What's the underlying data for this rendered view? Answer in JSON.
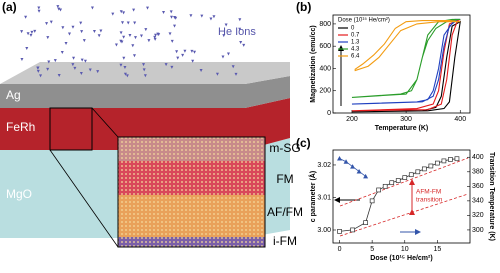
{
  "diagram": {
    "panel_label": "(a)",
    "ion_label": "He Ions",
    "layers": [
      "Ag",
      "FeRh",
      "MgO"
    ],
    "regions": [
      "m-SG",
      "FM",
      "AF/FM",
      "i-FM"
    ]
  },
  "chart_data": [
    {
      "type": "line",
      "label": "(b)",
      "x_label": "Temperature (K)",
      "y_label": "Magnetization (emu/cc)",
      "legend_title": "Dose (10¹⁵ He/cm²)",
      "legend": "upper left",
      "xlim": [
        165,
        418
      ],
      "xticks": [
        200,
        300,
        400
      ],
      "ylim": [
        0,
        880
      ],
      "yticks": [
        0,
        200,
        400,
        600,
        800
      ],
      "series": [
        {
          "name": "0",
          "color": "#000000",
          "x": [
            200,
            340,
            370,
            380,
            390,
            400,
            385,
            375,
            365,
            355,
            330,
            200
          ],
          "values": [
            10,
            20,
            40,
            100,
            500,
            820,
            780,
            500,
            150,
            50,
            20,
            10
          ]
        },
        {
          "name": "0.7",
          "color": "#e41a1c",
          "x": [
            200,
            340,
            365,
            375,
            385,
            395,
            400,
            380,
            370,
            360,
            350,
            320,
            200
          ],
          "values": [
            20,
            30,
            80,
            300,
            700,
            830,
            840,
            800,
            550,
            200,
            80,
            40,
            20
          ]
        },
        {
          "name": "1.3",
          "color": "#2040c0",
          "x": [
            200,
            330,
            350,
            360,
            370,
            380,
            395,
            400,
            390,
            370,
            360,
            350,
            340,
            320,
            200
          ],
          "values": [
            80,
            100,
            150,
            300,
            600,
            780,
            840,
            840,
            840,
            700,
            400,
            200,
            120,
            100,
            80
          ]
        },
        {
          "name": "4.3",
          "color": "#2a9d2a",
          "x": [
            200,
            300,
            320,
            330,
            340,
            355,
            375,
            395,
            400,
            385,
            360,
            340,
            330,
            320,
            310,
            290,
            200
          ],
          "values": [
            140,
            170,
            300,
            500,
            650,
            760,
            820,
            840,
            840,
            840,
            820,
            700,
            500,
            300,
            200,
            170,
            140
          ]
        },
        {
          "name": "6.4",
          "color": "#f39c12",
          "x": [
            205,
            230,
            250,
            270,
            290,
            320,
            360,
            390,
            400,
            380,
            330,
            300,
            280,
            260,
            240,
            220,
            205
          ],
          "values": [
            380,
            420,
            500,
            620,
            740,
            800,
            820,
            820,
            820,
            830,
            830,
            820,
            760,
            620,
            520,
            440,
            390
          ]
        }
      ]
    },
    {
      "type": "line",
      "label": "(c)",
      "x_label": "Dose (10¹⁵ He/cm²)",
      "y_label": "c parameter (Å)",
      "y2_label": "Transition Temperature (K)",
      "annotation": [
        "AFM-FM",
        "transition"
      ],
      "xlim": [
        -1,
        20
      ],
      "xticks": [
        0,
        5,
        10,
        15
      ],
      "ylim": [
        2.996,
        3.0246
      ],
      "yticks": [
        {
          "value": 3,
          "label": "3.00"
        },
        3.01,
        3.02
      ],
      "y2lim": [
        282,
        410
      ],
      "y2ticks": [
        300,
        320,
        340,
        360,
        380,
        400
      ],
      "series": [
        {
          "color": "#3355aa",
          "marker": "triangle",
          "x": [
            0,
            1,
            2,
            3,
            4
          ],
          "values": [
            3.022,
            3.021,
            3.0195,
            3.018,
            3.0165
          ]
        },
        {
          "color": "#333333",
          "marker": "square",
          "axis": "y2",
          "x": [
            0,
            2,
            4,
            5,
            6,
            7,
            8,
            9,
            10,
            11,
            12,
            13,
            14,
            15,
            16,
            17,
            18
          ],
          "values": [
            298,
            300,
            310,
            340,
            355,
            360,
            365,
            368,
            372,
            376,
            380,
            384,
            388,
            392,
            395,
            397,
            398
          ]
        }
      ]
    }
  ]
}
